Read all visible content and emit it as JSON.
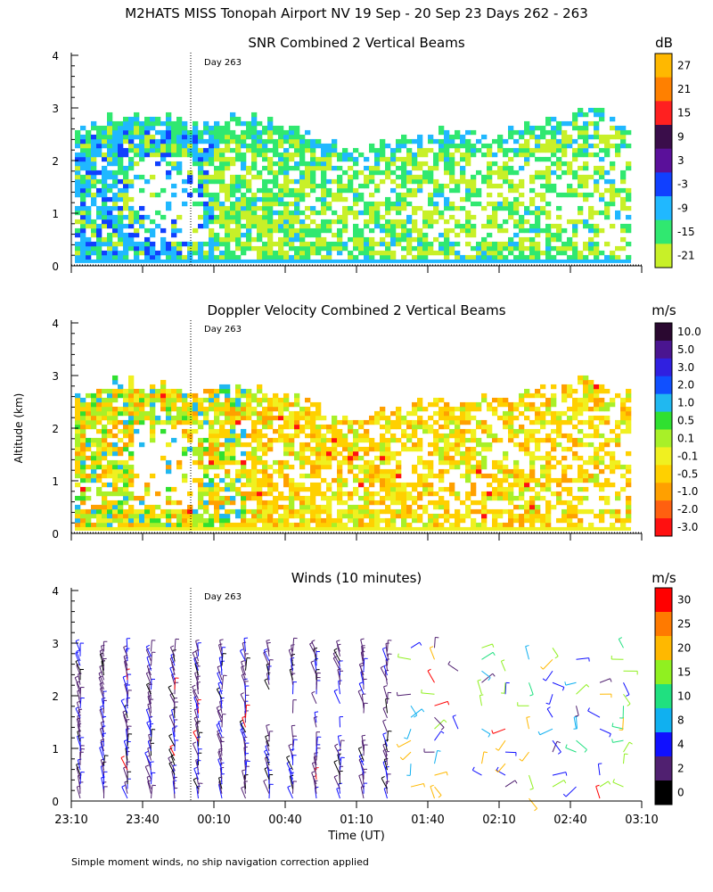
{
  "figure": {
    "title": "M2HATS MISS Tonopah Airport NV  19 Sep - 20 Sep 23 Days 262 - 263",
    "ylabel": "Altitude (km)",
    "xlabel": "Time (UT)",
    "day_marker": "Day 263",
    "footnote": "Simple moment winds, no ship navigation correction applied",
    "x_ticks": [
      "23:10",
      "23:40",
      "00:10",
      "00:40",
      "01:10",
      "01:40",
      "02:10",
      "02:40",
      "03:10"
    ],
    "y_ticks": [
      "0",
      "1",
      "2",
      "3",
      "4"
    ]
  },
  "chart_data": [
    {
      "type": "heatmap",
      "title": "SNR Combined 2 Vertical Beams",
      "unit": "dB",
      "x_range": [
        "23:10",
        "03:10"
      ],
      "ylim": [
        0,
        4
      ],
      "colorbar_labels": [
        "27",
        "21",
        "15",
        "9",
        "3",
        "-3",
        "-9",
        "-15",
        "-21"
      ],
      "colors": [
        "#ffb800",
        "#ff8000",
        "#ff2020",
        "#3a0d4a",
        "#5a109a",
        "#1040ff",
        "#20b8ff",
        "#30e870",
        "#c8f028"
      ]
    },
    {
      "type": "heatmap",
      "title": "Doppler Velocity Combined 2 Vertical Beams",
      "unit": "m/s",
      "x_range": [
        "23:10",
        "03:10"
      ],
      "ylim": [
        0,
        4
      ],
      "colorbar_labels": [
        "10.0",
        "5.0",
        "3.0",
        "2.0",
        "1.0",
        "0.5",
        "0.1",
        "-0.1",
        "-0.5",
        "-1.0",
        "-2.0",
        "-3.0"
      ],
      "colors": [
        "#2a0830",
        "#4a1590",
        "#3020e0",
        "#1050ff",
        "#20b8f0",
        "#30e030",
        "#a8f028",
        "#f0f020",
        "#ffd000",
        "#ffa000",
        "#ff6010",
        "#ff1010"
      ]
    },
    {
      "type": "scatter",
      "title": "Winds (10 minutes)",
      "unit": "m/s",
      "x_range": [
        "23:10",
        "03:10"
      ],
      "ylim": [
        0,
        4
      ],
      "colorbar_labels": [
        "30",
        "25",
        "20",
        "15",
        "10",
        "8",
        "4",
        "2",
        "0"
      ],
      "colors": [
        "#ff0000",
        "#ff7a00",
        "#ffb800",
        "#90f020",
        "#20e080",
        "#10b0f0",
        "#1010ff",
        "#502070",
        "#000000"
      ]
    }
  ]
}
